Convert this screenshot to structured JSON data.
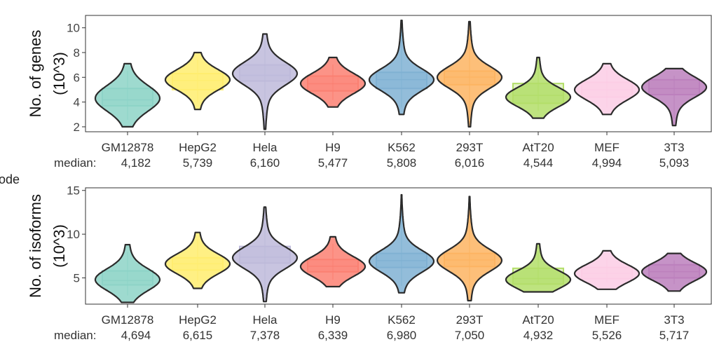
{
  "stray_text": "ode",
  "chart_data": [
    {
      "type": "violin",
      "ylabel": "No. of genes",
      "ylabel_unit": "(10^3)",
      "ylim": [
        1.6,
        11.0
      ],
      "yticks": [
        2,
        4,
        6,
        8,
        10
      ],
      "categories": [
        "GM12878",
        "HepG2",
        "Hela",
        "H9",
        "K562",
        "293T",
        "AtT20",
        "MEF",
        "3T3"
      ],
      "median_label": "median:",
      "medians": [
        "4,182",
        "5,739",
        "6,160",
        "5,477",
        "5,808",
        "6,016",
        "4,544",
        "4,994",
        "5,093"
      ],
      "colors": [
        "#8dd3c7",
        "#ffed6f",
        "#bebada",
        "#fb8072",
        "#80b1d3",
        "#fdb462",
        "#b3de69",
        "#fccde5",
        "#bc80bd"
      ],
      "violins": [
        {
          "min": 2.0,
          "max": 7.1,
          "q1": 3.7,
          "median": 4.18,
          "q3": 5.1,
          "mode": 4.3,
          "spread": 1.0
        },
        {
          "min": 3.4,
          "max": 8.0,
          "q1": 5.0,
          "median": 5.74,
          "q3": 6.3,
          "mode": 5.8,
          "spread": 0.8
        },
        {
          "min": 1.8,
          "max": 9.5,
          "q1": 5.7,
          "median": 6.16,
          "q3": 7.0,
          "mode": 6.3,
          "spread": 0.9
        },
        {
          "min": 3.6,
          "max": 7.6,
          "q1": 4.9,
          "median": 5.48,
          "q3": 6.1,
          "mode": 5.5,
          "spread": 0.8
        },
        {
          "min": 3.0,
          "max": 10.6,
          "q1": 5.1,
          "median": 5.81,
          "q3": 6.4,
          "mode": 5.8,
          "spread": 0.85
        },
        {
          "min": 2.0,
          "max": 10.5,
          "q1": 5.4,
          "median": 6.02,
          "q3": 6.5,
          "mode": 6.0,
          "spread": 0.85
        },
        {
          "min": 2.7,
          "max": 7.6,
          "q1": 3.9,
          "median": 4.54,
          "q3": 5.5,
          "mode": 4.4,
          "spread": 0.75
        },
        {
          "min": 3.0,
          "max": 7.1,
          "q1": 4.4,
          "median": 4.99,
          "q3": 5.6,
          "mode": 5.0,
          "spread": 0.8
        },
        {
          "min": 2.1,
          "max": 6.7,
          "q1": 4.6,
          "median": 5.09,
          "q3": 5.8,
          "mode": 5.2,
          "spread": 0.8
        }
      ]
    },
    {
      "type": "violin",
      "ylabel": "No. of isoforms",
      "ylabel_unit": "(10^3)",
      "ylim": [
        2.0,
        15.3
      ],
      "yticks": [
        5,
        10,
        15
      ],
      "categories": [
        "GM12878",
        "HepG2",
        "Hela",
        "H9",
        "K562",
        "293T",
        "AtT20",
        "MEF",
        "3T3"
      ],
      "median_label": "median:",
      "medians": [
        "4,694",
        "6,615",
        "7,378",
        "6,339",
        "6,980",
        "7,050",
        "4,932",
        "5,526",
        "5,717"
      ],
      "colors": [
        "#8dd3c7",
        "#ffed6f",
        "#bebada",
        "#fb8072",
        "#80b1d3",
        "#fdb462",
        "#b3de69",
        "#fccde5",
        "#bc80bd"
      ],
      "violins": [
        {
          "min": 2.2,
          "max": 8.8,
          "q1": 4.2,
          "median": 4.69,
          "q3": 5.8,
          "mode": 4.8,
          "spread": 1.2
        },
        {
          "min": 3.8,
          "max": 10.2,
          "q1": 5.9,
          "median": 6.62,
          "q3": 7.3,
          "mode": 6.6,
          "spread": 1.1
        },
        {
          "min": 2.3,
          "max": 13.1,
          "q1": 6.7,
          "median": 7.38,
          "q3": 8.6,
          "mode": 7.3,
          "spread": 1.2
        },
        {
          "min": 4.0,
          "max": 9.7,
          "q1": 5.7,
          "median": 6.34,
          "q3": 7.1,
          "mode": 6.3,
          "spread": 1.1
        },
        {
          "min": 3.3,
          "max": 14.5,
          "q1": 6.2,
          "median": 6.98,
          "q3": 7.8,
          "mode": 6.9,
          "spread": 1.2
        },
        {
          "min": 2.4,
          "max": 14.3,
          "q1": 6.3,
          "median": 7.05,
          "q3": 7.8,
          "mode": 7.0,
          "spread": 1.2
        },
        {
          "min": 3.4,
          "max": 8.9,
          "q1": 4.3,
          "median": 4.93,
          "q3": 6.1,
          "mode": 4.8,
          "spread": 1.0
        },
        {
          "min": 3.7,
          "max": 8.1,
          "q1": 4.9,
          "median": 5.53,
          "q3": 6.2,
          "mode": 5.5,
          "spread": 1.0
        },
        {
          "min": 3.5,
          "max": 7.8,
          "q1": 5.0,
          "median": 5.72,
          "q3": 6.5,
          "mode": 5.7,
          "spread": 1.0
        }
      ]
    }
  ]
}
